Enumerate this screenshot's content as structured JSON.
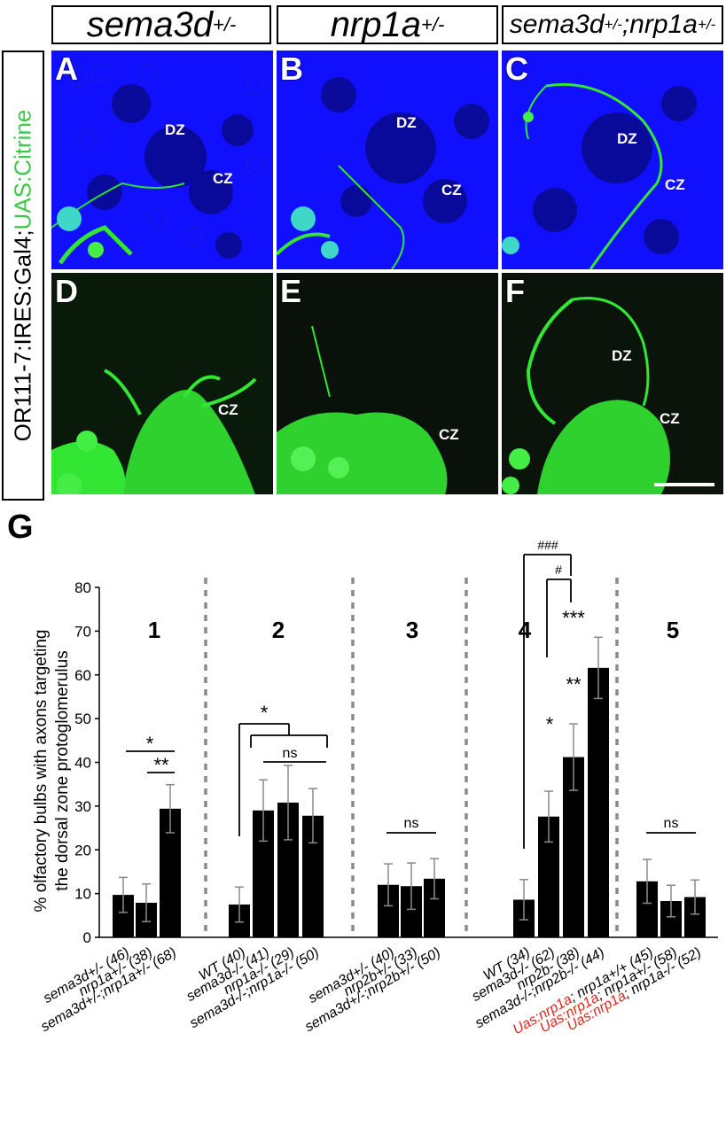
{
  "header": {
    "col1": {
      "gene": "sema3d",
      "sup": "+/-"
    },
    "col2": {
      "gene": "nrp1a",
      "sup": "+/-"
    },
    "col3": {
      "gene1": "sema3d",
      "sup1": "+/-",
      "sep": ";",
      "gene2": "nrp1a",
      "sup2": "+/-"
    }
  },
  "side_label": {
    "part1": "OR111-7:IRES:Gal4;",
    "part2": "UAS:Citrine"
  },
  "panels": [
    {
      "letter": "A",
      "zones": [
        "DZ",
        "CZ"
      ]
    },
    {
      "letter": "B",
      "zones": [
        "DZ",
        "CZ"
      ]
    },
    {
      "letter": "C",
      "zones": [
        "DZ",
        "CZ"
      ]
    },
    {
      "letter": "D",
      "zones": [
        "CZ"
      ]
    },
    {
      "letter": "E",
      "zones": [
        "CZ"
      ]
    },
    {
      "letter": "F",
      "zones": [
        "DZ",
        "CZ"
      ]
    }
  ],
  "colors": {
    "nuclear_blue": "#1010ff",
    "citrine_green": "#33e633",
    "highlight_red": "#e0261c"
  },
  "chart_letter": "G",
  "chart_data": {
    "type": "bar",
    "ylabel_line1": "% olfactory bulbs with axons targeting",
    "ylabel_line2": "the dorsal zone protoglomerulus",
    "ylim": [
      0,
      80
    ],
    "yticks": [
      "0",
      "10",
      "20",
      "30",
      "40",
      "50",
      "60",
      "70",
      "80"
    ],
    "groups": [
      {
        "name": "1",
        "categories": [
          "sema3d+/- (46)",
          "nrp1a+/- (38)",
          "sema3d+/-;nrp1a+/- (68)"
        ],
        "values": [
          9.7,
          7.9,
          29.4
        ],
        "errors": [
          4.0,
          4.3,
          5.5
        ],
        "annotations": [
          "*",
          "**"
        ]
      },
      {
        "name": "2",
        "categories": [
          "WT (40)",
          "sema3d-/- (41)",
          "nrp1a-/- (29)",
          "sema3d-/-;nrp1a-/- (50)"
        ],
        "values": [
          7.5,
          29.0,
          30.8,
          27.8
        ],
        "errors": [
          4.0,
          7.0,
          8.5,
          6.2
        ],
        "annotations": [
          "*",
          "ns"
        ]
      },
      {
        "name": "3",
        "categories": [
          "sema3d+/- (40)",
          "nrp2b+/- (33)",
          "sema3d+/-;nrp2b+/- (50)"
        ],
        "values": [
          12.0,
          11.7,
          13.4
        ],
        "errors": [
          4.8,
          5.3,
          4.6
        ],
        "annotations": [
          "ns"
        ]
      },
      {
        "name": "4",
        "categories": [
          "WT (34)",
          "sema3d-/- (62)",
          "nrp2b- (38)",
          "sema3d-/-;nrp2b-/- (44)"
        ],
        "values": [
          8.6,
          27.6,
          41.2,
          61.6
        ],
        "errors": [
          4.6,
          5.8,
          7.6,
          7.0
        ],
        "annotations": [
          "*",
          "**",
          "***",
          "#",
          "###"
        ]
      },
      {
        "name": "5",
        "categories": [
          "Uas:nrp1a; nrp1a+/+ (45)",
          "Uas:nrp1a; nrp1a+/- (58)",
          "Uas:nrp1a; nrp1a-/- (52)"
        ],
        "values": [
          12.8,
          8.3,
          9.2
        ],
        "errors": [
          5.0,
          3.6,
          3.9
        ],
        "annotations": [
          "ns"
        ]
      }
    ]
  }
}
